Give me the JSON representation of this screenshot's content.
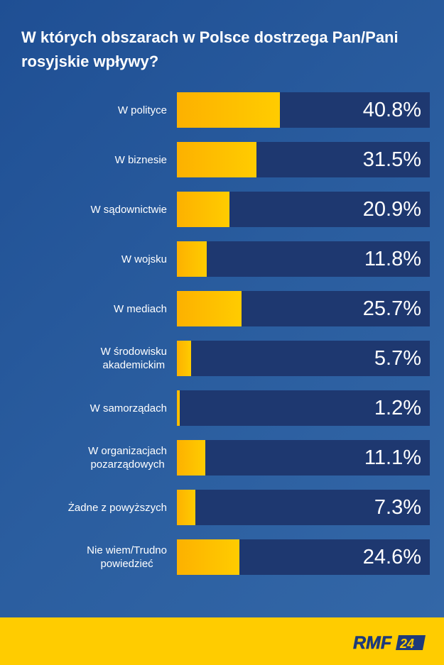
{
  "chart_data": {
    "type": "bar",
    "orientation": "horizontal",
    "title": "W których obszarach w Polsce dostrzega Pan/Pani rosyjskie wpływy?",
    "categories": [
      "W polityce",
      "W biznesie",
      "W sądownictwie",
      "W wojsku",
      "W mediach",
      "W środowisku akademickim",
      "W samorządach",
      "W organizacjach pozarządowych",
      "Żadne z powyższych",
      "Nie wiem/Trudno powiedzieć"
    ],
    "label_lines": [
      [
        "W polityce"
      ],
      [
        "W biznesie"
      ],
      [
        "W sądownictwie"
      ],
      [
        "W wojsku"
      ],
      [
        "W mediach"
      ],
      [
        "W środowisku",
        "akademickim"
      ],
      [
        "W samorządach"
      ],
      [
        "W organizacjach",
        "pozarządowych"
      ],
      [
        "Żadne z powyższych"
      ],
      [
        "Nie wiem/Trudno",
        "powiedzieć"
      ]
    ],
    "values": [
      40.8,
      31.5,
      20.9,
      11.8,
      25.7,
      5.7,
      1.2,
      11.1,
      7.3,
      24.6
    ],
    "value_labels": [
      "40.8%",
      "31.5%",
      "20.9%",
      "11.8%",
      "25.7%",
      "5.7%",
      "1.2%",
      "11.1%",
      "7.3%",
      "24.6%"
    ],
    "xlim": [
      0,
      100
    ],
    "grid": false,
    "colors": {
      "bar": "#ffcc00",
      "track": "#1e3870",
      "background": "#2a5d9f",
      "footer": "#ffcc00"
    }
  },
  "logo": {
    "text": "RMF",
    "badge": "24"
  }
}
